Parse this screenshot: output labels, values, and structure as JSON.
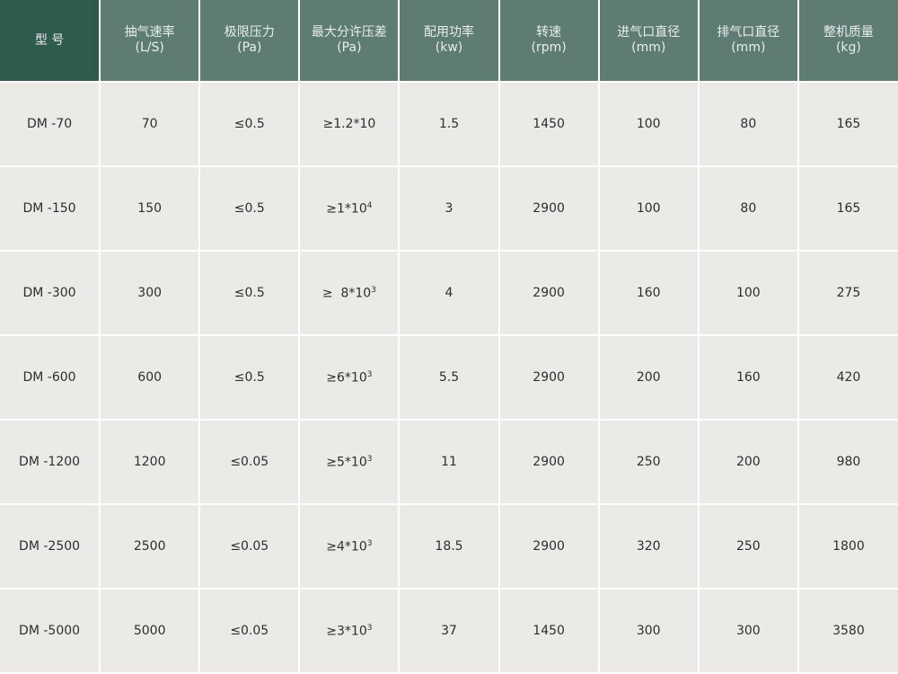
{
  "header": [
    {
      "label": "型  号",
      "unit": ""
    },
    {
      "label": "抽气速率",
      "unit": "(L/S)"
    },
    {
      "label": "极限压力",
      "unit": "(Pa)"
    },
    {
      "label": "最大分许压差",
      "unit": "(Pa)"
    },
    {
      "label": "配用功率",
      "unit": "(kw)"
    },
    {
      "label": "转速",
      "unit": "(rpm)"
    },
    {
      "label": "进气口直径",
      "unit": "(mm)"
    },
    {
      "label": "排气口直径",
      "unit": "(mm)"
    },
    {
      "label": "整机质量",
      "unit": "(kg)"
    }
  ],
  "rows": [
    {
      "model": "DM -70",
      "speed": "70",
      "pressure": "≤0.5",
      "diff": "≥1.2*10",
      "exp": "",
      "power": "1.5",
      "rpm": "1450",
      "inlet": "100",
      "outlet": "80",
      "mass": "165"
    },
    {
      "model": "DM -150",
      "speed": "150",
      "pressure": "≤0.5",
      "diff": "≥1*10",
      "exp": "4",
      "power": "3",
      "rpm": "2900",
      "inlet": "100",
      "outlet": "80",
      "mass": "165"
    },
    {
      "model": "DM -300",
      "speed": "300",
      "pressure": "≤0.5",
      "diff": "≥  8*10",
      "exp": "3",
      "power": "4",
      "rpm": "2900",
      "inlet": "160",
      "outlet": "100",
      "mass": "275"
    },
    {
      "model": "DM -600",
      "speed": "600",
      "pressure": "≤0.5",
      "diff": "≥6*10",
      "exp": "3",
      "power": "5.5",
      "rpm": "2900",
      "inlet": "200",
      "outlet": "160",
      "mass": "420"
    },
    {
      "model": "DM -1200",
      "speed": "1200",
      "pressure": "≤0.05",
      "diff": "≥5*10",
      "exp": "3",
      "power": "11",
      "rpm": "2900",
      "inlet": "250",
      "outlet": "200",
      "mass": "980"
    },
    {
      "model": "DM -2500",
      "speed": "2500",
      "pressure": "≤0.05",
      "diff": "≥4*10",
      "exp": "3",
      "power": "18.5",
      "rpm": "2900",
      "inlet": "320",
      "outlet": "250",
      "mass": "1800"
    },
    {
      "model": "DM -5000",
      "speed": "5000",
      "pressure": "≤0.05",
      "diff": "≥3*10",
      "exp": "3",
      "power": "37",
      "rpm": "1450",
      "inlet": "300",
      "outlet": "300",
      "mass": "3580"
    }
  ],
  "colors": {
    "header_first": "#2f5a4e",
    "header": "#5f7c74",
    "cell": "#ebeae6"
  }
}
